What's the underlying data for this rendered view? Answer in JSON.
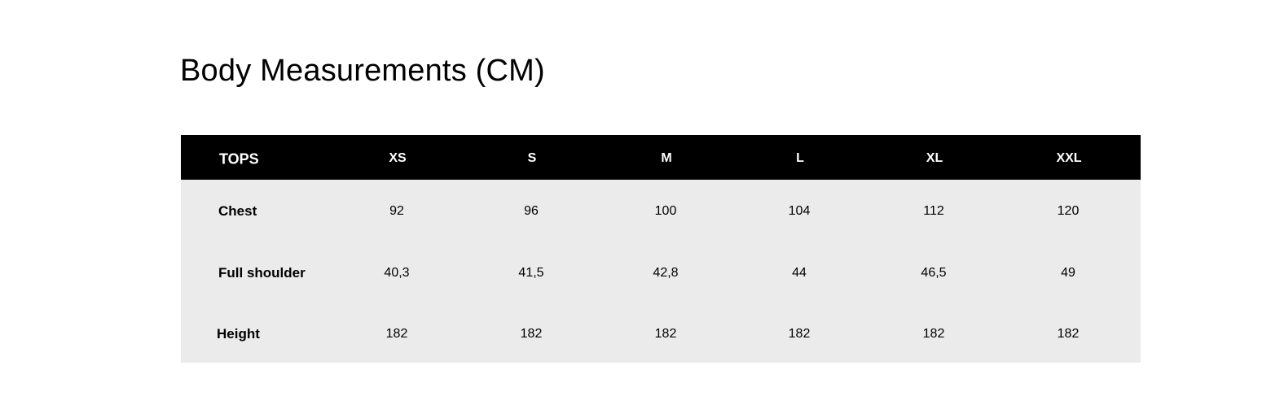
{
  "title": "Body Measurements (CM)",
  "table": {
    "corner": "TOPS",
    "sizes": [
      "XS",
      "S",
      "M",
      "L",
      "XL",
      "XXL"
    ],
    "rows": [
      {
        "label": "Chest",
        "values": [
          "92",
          "96",
          "100",
          "104",
          "112",
          "120"
        ]
      },
      {
        "label": "Full shoulder",
        "values": [
          "40,3",
          "41,5",
          "42,8",
          "44",
          "46,5",
          "49"
        ]
      },
      {
        "label": "Height",
        "values": [
          "182",
          "182",
          "182",
          "182",
          "182",
          "182"
        ]
      }
    ]
  },
  "colors": {
    "header_bg": "#000000",
    "body_bg": "#ebebeb",
    "header_text": "#ffffff"
  }
}
